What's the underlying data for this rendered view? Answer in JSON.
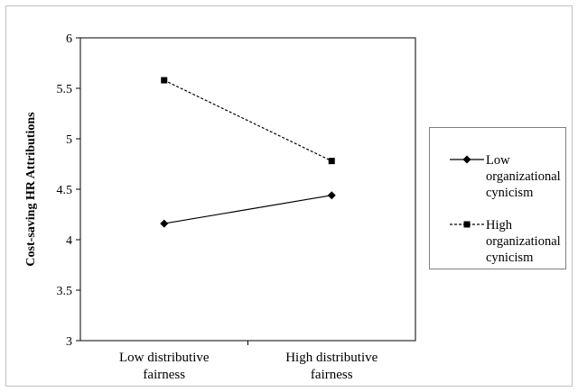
{
  "chart_data": {
    "type": "line",
    "categories": [
      "Low distributive fairness",
      "High distributive fairness"
    ],
    "category_lines": [
      [
        "Low distributive",
        "fairness"
      ],
      [
        "High distributive",
        "fairness"
      ]
    ],
    "ylabel": "Cost-saving HR Attributions",
    "ylim": [
      3,
      6
    ],
    "yticks": [
      "3",
      "3.5",
      "4",
      "4.5",
      "5",
      "5.5",
      "6"
    ],
    "grid": false,
    "legend_position": "right",
    "series": [
      {
        "name": "Low organizational cynicism",
        "name_lines": [
          "Low",
          "organizational",
          "cynicism"
        ],
        "values": [
          4.16,
          4.44
        ],
        "line_style": "solid",
        "marker": "diamond",
        "color": "#000000"
      },
      {
        "name": "High organizational cynicism",
        "name_lines": [
          "High",
          "organizational",
          "cynicism"
        ],
        "values": [
          5.58,
          4.78
        ],
        "line_style": "dashed",
        "marker": "square",
        "color": "#000000"
      }
    ]
  }
}
